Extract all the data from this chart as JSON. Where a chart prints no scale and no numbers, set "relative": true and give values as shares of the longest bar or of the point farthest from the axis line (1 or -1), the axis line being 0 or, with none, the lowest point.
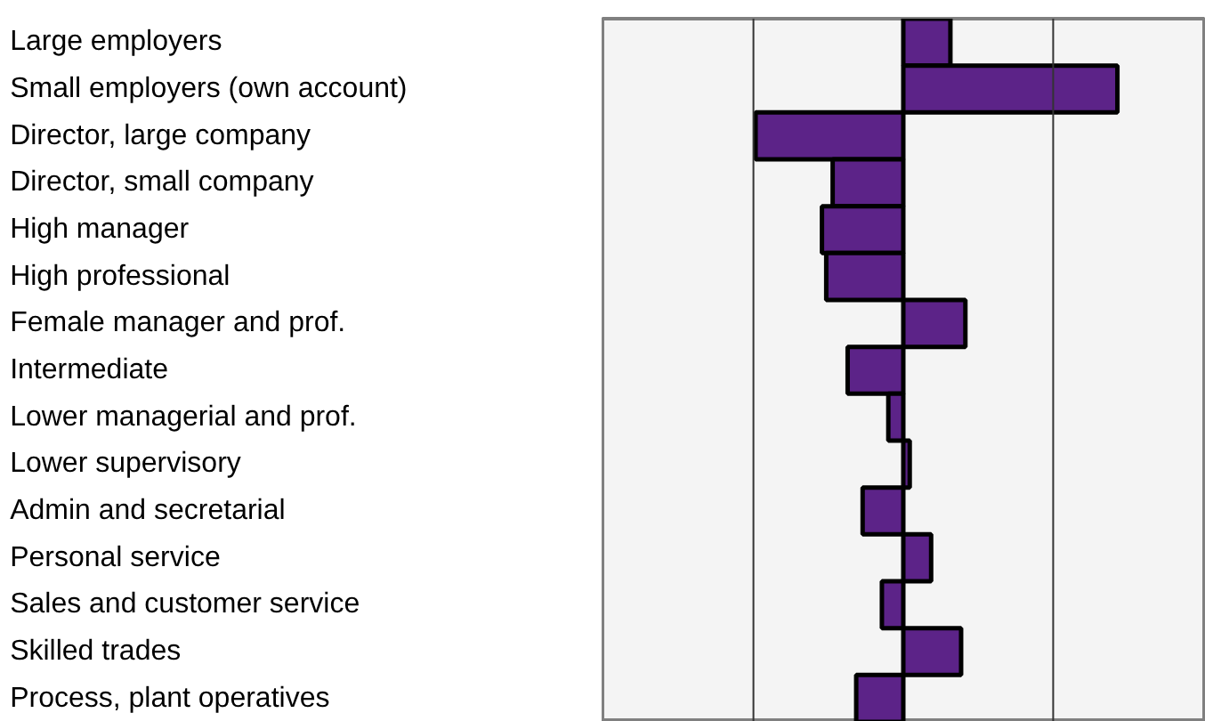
{
  "chart_data": {
    "type": "bar",
    "orientation": "horizontal",
    "relative": true,
    "categories": [
      "Large employers",
      "Small employers (own account)",
      "Director, large company",
      "Director, small company",
      "High manager",
      "High professional",
      "Female manager and prof.",
      "Intermediate",
      "Lower managerial and prof.",
      "Lower supervisory",
      "Admin and secretarial",
      "Personal service",
      "Sales and customer service",
      "Skilled trades",
      "Process, plant operatives"
    ],
    "values": [
      0.22,
      1,
      -0.69,
      -0.33,
      -0.38,
      -0.36,
      0.29,
      -0.26,
      -0.07,
      0.03,
      -0.19,
      0.13,
      -0.1,
      0.27,
      -0.22
    ],
    "color": "#5c2388",
    "ref_lines": [
      {
        "axis": "x",
        "value": -0.7,
        "color": "#333333"
      },
      {
        "axis": "x",
        "value": 0.7,
        "color": "#333333"
      }
    ]
  }
}
